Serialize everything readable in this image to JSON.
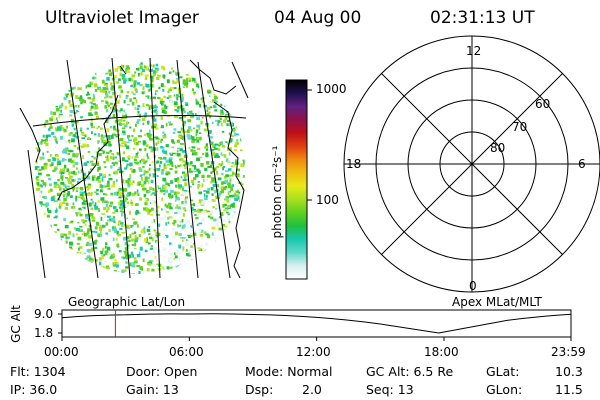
{
  "header": {
    "instrument": "Ultraviolet Imager",
    "date": "04 Aug 00",
    "time": "02:31:13 UT"
  },
  "image_panel": {
    "caption": "Geographic Lat/Lon"
  },
  "colorbar": {
    "label": "photon cm⁻²s⁻¹",
    "ticks": [
      "1000",
      "100"
    ],
    "scale": "log",
    "colors": [
      "#ffffff",
      "#d8f0f0",
      "#60d8c8",
      "#18c8b0",
      "#20c040",
      "#60d020",
      "#a8e020",
      "#e8e818",
      "#f0c010",
      "#f08a10",
      "#e04010",
      "#c01018",
      "#901048",
      "#602080",
      "#201050",
      "#000000"
    ]
  },
  "polar_panel": {
    "caption": "Apex MLat/MLT",
    "mlt_labels": [
      "12",
      "18",
      "6",
      "0"
    ],
    "mlat_labels": [
      "60",
      "70",
      "80"
    ]
  },
  "orbit_panel": {
    "ylabel": "GC Alt",
    "y_ticks": [
      "9.0",
      "1.8"
    ],
    "x_ticks": [
      "00:00",
      "06:00",
      "12:00",
      "18:00",
      "23:59"
    ],
    "current_marker_time": "02:31"
  },
  "chart_data": {
    "type": "line",
    "title": "",
    "xlabel": "",
    "ylabel": "GC Alt",
    "x": [
      "00:00",
      "03:00",
      "06:00",
      "09:00",
      "12:00",
      "15:00",
      "17:45",
      "21:00",
      "23:59"
    ],
    "values": [
      7.6,
      8.7,
      9.0,
      8.8,
      7.7,
      5.2,
      1.8,
      6.6,
      8.9
    ],
    "ylim": [
      1.8,
      9.0
    ],
    "grid": false
  },
  "status": {
    "flt": "Flt: 1304",
    "ip": "IP: 36.0",
    "door": "Door: Open",
    "gain": "Gain: 13",
    "mode": "Mode: Normal",
    "dsp_label": "Dsp:",
    "dsp_value": "2.0",
    "gc_alt": "GC Alt: 6.5 Re",
    "seq": "Seq: 13",
    "glat_label": "GLat:",
    "glat_value": "10.3",
    "glon_label": "GLon:",
    "glon_value": "11.5"
  }
}
